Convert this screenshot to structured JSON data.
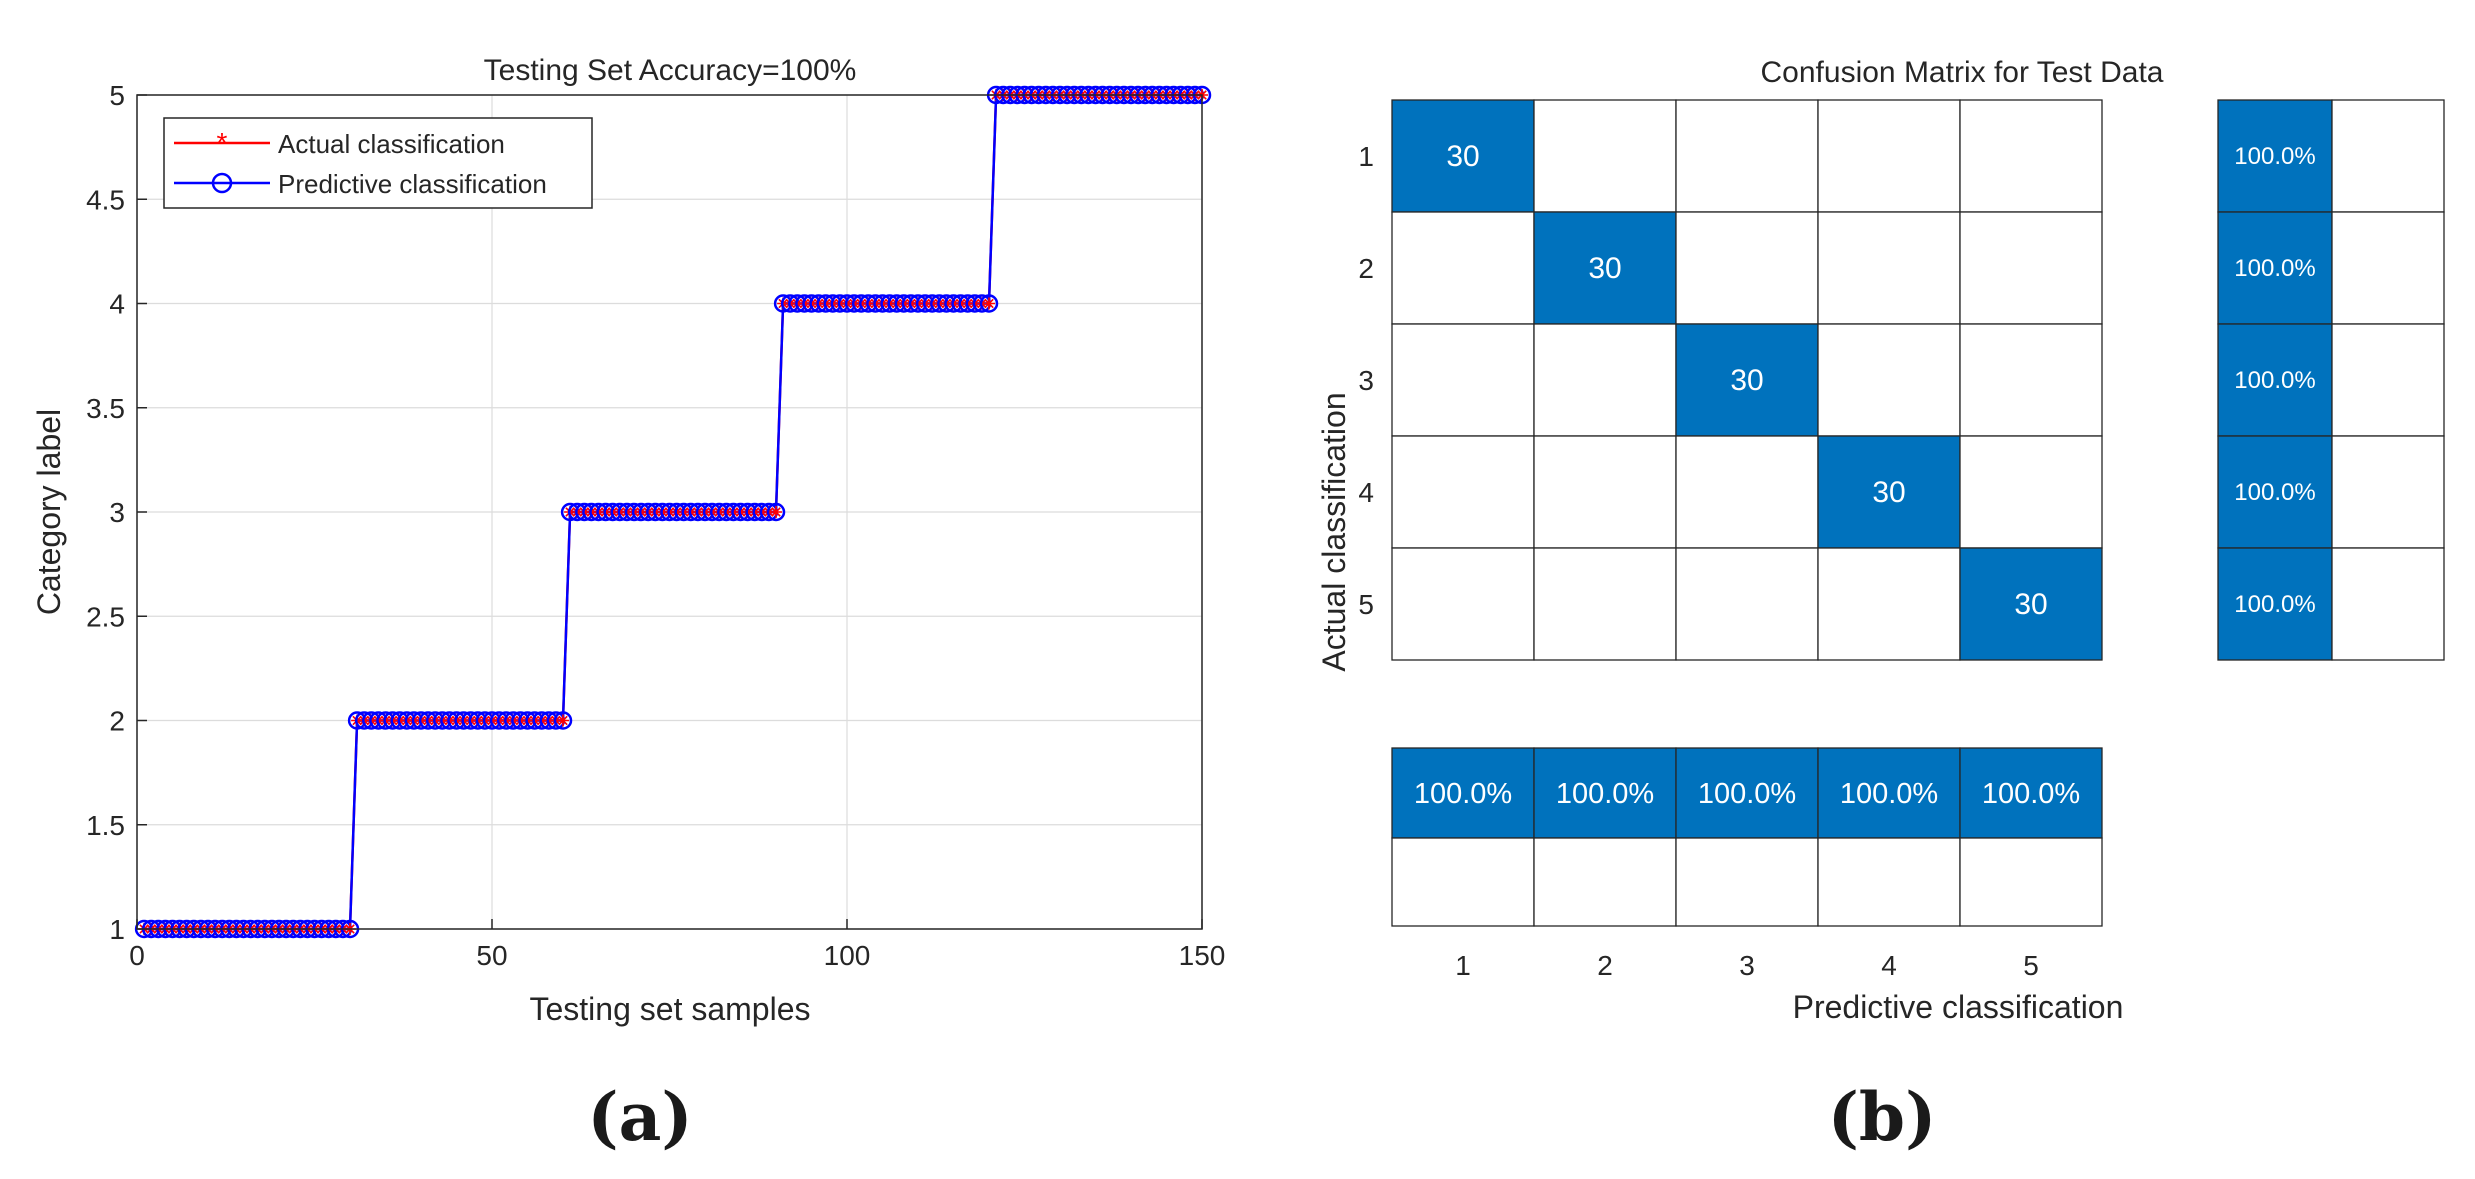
{
  "colors": {
    "actual": "#ff0000",
    "predicted": "#0000ff",
    "cell_fill": "#0072bd",
    "grid": "#dcdcdc",
    "axis": "#262626",
    "cell_border": "#262626"
  },
  "panel_labels": {
    "a": "(a)",
    "b": "(b)"
  },
  "chart_data": [
    {
      "type": "line",
      "title": "Testing Set Accuracy=100%",
      "xlabel": "Testing set samples",
      "ylabel": "Category label",
      "xlim": [
        0,
        150
      ],
      "ylim": [
        1,
        5
      ],
      "xticks": [
        "0",
        "50",
        "100",
        "150"
      ],
      "yticks": [
        "1",
        "1.5",
        "2",
        "2.5",
        "3",
        "3.5",
        "4",
        "4.5",
        "5"
      ],
      "grid": true,
      "legend_position": "top-left",
      "segments": [
        {
          "x_start": 1,
          "x_end": 30,
          "value": 1
        },
        {
          "x_start": 31,
          "x_end": 60,
          "value": 2
        },
        {
          "x_start": 61,
          "x_end": 90,
          "value": 3
        },
        {
          "x_start": 91,
          "x_end": 120,
          "value": 4
        },
        {
          "x_start": 121,
          "x_end": 150,
          "value": 5
        }
      ],
      "series": [
        {
          "name": "Actual classification",
          "marker": "asterisk",
          "color": "#ff0000"
        },
        {
          "name": "Predictive classification",
          "marker": "circle",
          "color": "#0000ff"
        }
      ]
    },
    {
      "type": "heatmap",
      "title": "Confusion Matrix for Test Data",
      "xlabel": "Predictive classification",
      "ylabel": "Actual classification",
      "classes": [
        "1",
        "2",
        "3",
        "4",
        "5"
      ],
      "matrix": [
        [
          30,
          0,
          0,
          0,
          0
        ],
        [
          0,
          30,
          0,
          0,
          0
        ],
        [
          0,
          0,
          30,
          0,
          0
        ],
        [
          0,
          0,
          0,
          30,
          0
        ],
        [
          0,
          0,
          0,
          0,
          30
        ]
      ],
      "row_summary": [
        "100.0%",
        "100.0%",
        "100.0%",
        "100.0%",
        "100.0%"
      ],
      "column_summary": [
        "100.0%",
        "100.0%",
        "100.0%",
        "100.0%",
        "100.0%"
      ]
    }
  ]
}
